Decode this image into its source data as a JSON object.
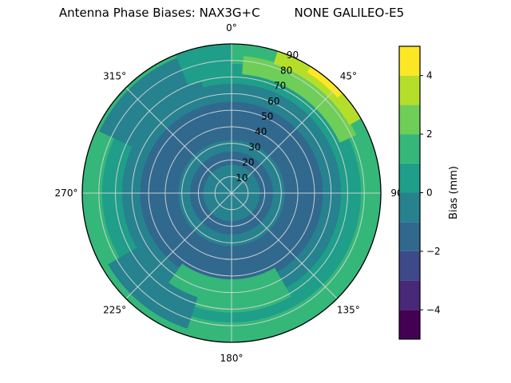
{
  "title": "Antenna Phase Biases: NAX3G+C         NONE GALILEO-E5",
  "chart_data": {
    "type": "heatmap",
    "projection": "polar",
    "title": "Antenna Phase Biases: NAX3G+C         NONE GALILEO-E5",
    "angular_axis": {
      "ticks": [
        "0°",
        "45°",
        "90",
        "135°",
        "180°",
        "225°",
        "270°",
        "315°"
      ],
      "tick_angles_deg": [
        0,
        45,
        90,
        135,
        180,
        225,
        270,
        315
      ],
      "direction": "clockwise",
      "zero_location": "top"
    },
    "radial_axis": {
      "ticks": [
        10,
        20,
        30,
        40,
        50,
        60,
        70,
        80,
        90
      ],
      "max": 90,
      "tick_label_azimuth_deg": 22.5
    },
    "colorbar": {
      "label": "Bias (mm)",
      "min": -5,
      "max": 5,
      "ticks": [
        4,
        2,
        0,
        -2,
        -4
      ],
      "tick_labels": [
        "4",
        "2",
        "0",
        "−2",
        "−4"
      ],
      "colormap": "viridis",
      "levels": [
        {
          "min": -5,
          "max": -4,
          "color": "#440154"
        },
        {
          "min": -4,
          "max": -3,
          "color": "#482878"
        },
        {
          "min": -3,
          "max": -2,
          "color": "#3e4989"
        },
        {
          "min": -2,
          "max": -1,
          "color": "#31688e"
        },
        {
          "min": -1,
          "max": 0,
          "color": "#26828e"
        },
        {
          "min": 0,
          "max": 1,
          "color": "#1f9e89"
        },
        {
          "min": 1,
          "max": 2,
          "color": "#35b779"
        },
        {
          "min": 2,
          "max": 3,
          "color": "#6ece58"
        },
        {
          "min": 3,
          "max": 4,
          "color": "#b5de2b"
        },
        {
          "min": 4,
          "max": 5,
          "color": "#fde725"
        }
      ]
    },
    "rings_bias_mm": [
      {
        "r_in": 0,
        "r_out": 17,
        "bias": -0.7
      },
      {
        "r_in": 17,
        "r_out": 25,
        "bias": -1.3
      },
      {
        "r_in": 25,
        "r_out": 32,
        "bias": -0.7
      },
      {
        "r_in": 32,
        "r_out": 55,
        "bias": -1.4
      },
      {
        "r_in": 55,
        "r_out": 66,
        "bias": -0.5
      },
      {
        "r_in": 66,
        "r_out": 78,
        "bias": 0.5
      },
      {
        "r_in": 78,
        "r_out": 90,
        "bias": 1.5
      }
    ],
    "patches_bias_mm": [
      {
        "az_start": 150,
        "az_end": 215,
        "r_in": 52,
        "r_out": 72,
        "bias": 1.2
      },
      {
        "az_start": 295,
        "az_end": 345,
        "r_in": 58,
        "r_out": 88,
        "bias": -0.5
      },
      {
        "az_start": 198,
        "az_end": 240,
        "r_in": 66,
        "r_out": 86,
        "bias": -0.3
      },
      {
        "az_start": 338,
        "az_end": 360,
        "r_in": 70,
        "r_out": 90,
        "bias": 0.6
      },
      {
        "az_start": 5,
        "az_end": 65,
        "r_in": 72,
        "r_out": 83,
        "bias": 2.3
      },
      {
        "az_start": 18,
        "az_end": 60,
        "r_in": 82,
        "r_out": 90,
        "bias": 3.4
      },
      {
        "az_start": 32,
        "az_end": 48,
        "r_in": 86,
        "r_out": 90,
        "bias": 4.5
      }
    ]
  }
}
